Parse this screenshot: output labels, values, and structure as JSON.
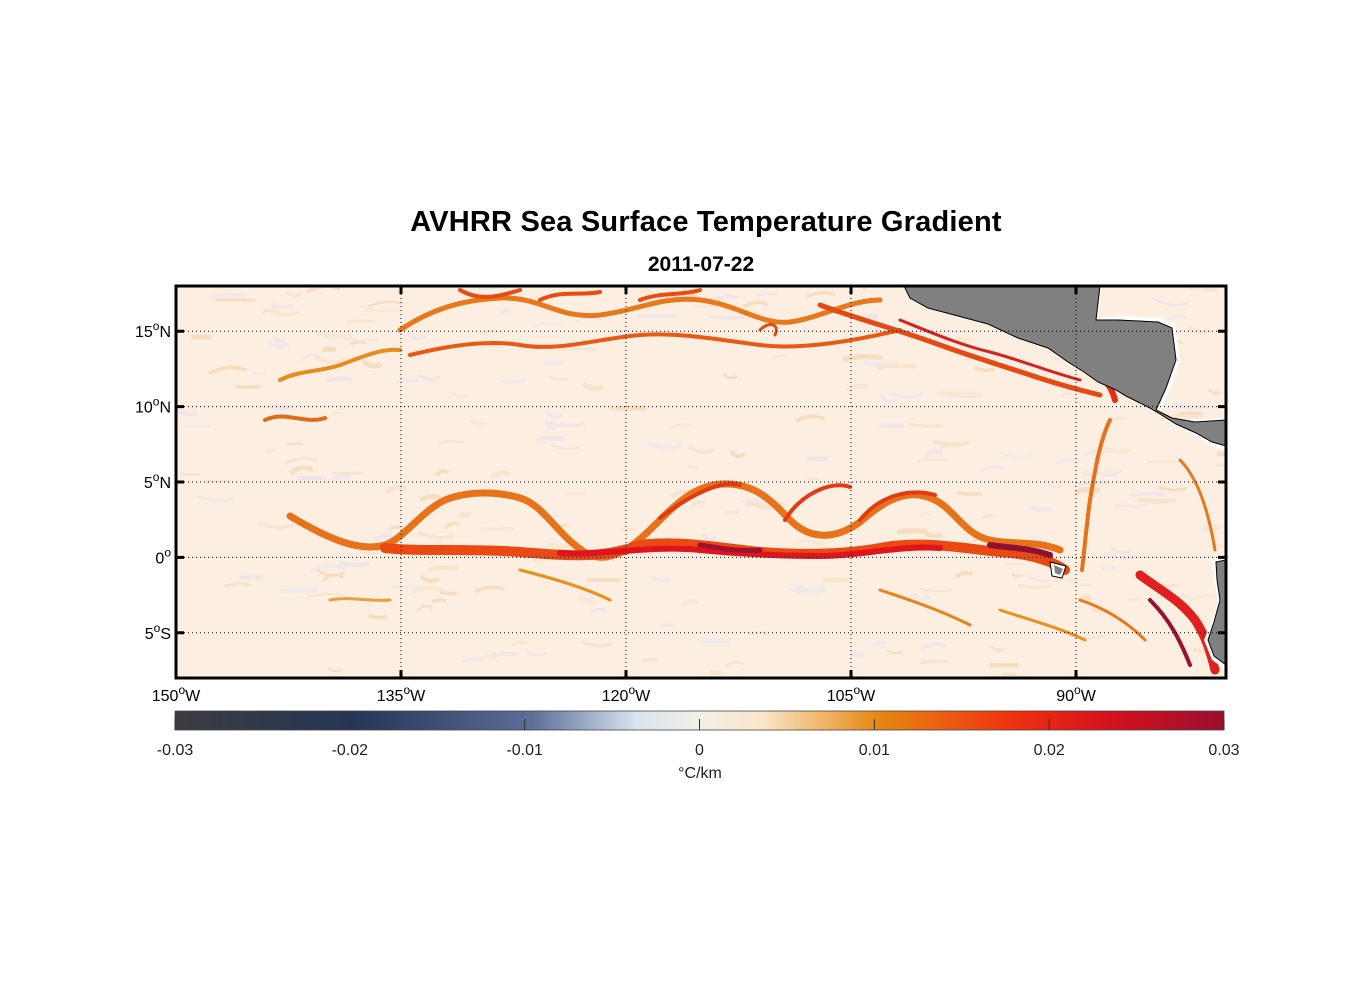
{
  "title": "AVHRR Sea Surface Temperature Gradient",
  "subtitle": "2011-07-22",
  "map": {
    "lon_range": [
      -150,
      -80
    ],
    "lat_range": [
      -8,
      18
    ],
    "grid": "dotted",
    "land_color": "#808080",
    "lat_ticks": [
      {
        "value": 15,
        "num": "15",
        "hemi": "N"
      },
      {
        "value": 10,
        "num": "10",
        "hemi": "N"
      },
      {
        "value": 5,
        "num": "5",
        "hemi": "N"
      },
      {
        "value": 0,
        "num": "0",
        "hemi": ""
      },
      {
        "value": -5,
        "num": "5",
        "hemi": "S"
      }
    ],
    "lon_ticks": [
      {
        "value": -150,
        "num": "150",
        "hemi": "W"
      },
      {
        "value": -135,
        "num": "135",
        "hemi": "W"
      },
      {
        "value": -120,
        "num": "120",
        "hemi": "W"
      },
      {
        "value": -105,
        "num": "105",
        "hemi": "W"
      },
      {
        "value": -90,
        "num": "90",
        "hemi": "W"
      }
    ]
  },
  "colorbar": {
    "range": [
      -0.03,
      0.03
    ],
    "ticks": [
      "-0.03",
      "-0.02",
      "-0.01",
      "0",
      "0.01",
      "0.02",
      "0.03"
    ],
    "label": "°C/km",
    "colors": [
      "#3a3c40",
      "#243555",
      "#5a6e98",
      "#d8e4ee",
      "#fbecd4",
      "#e68812",
      "#f03010",
      "#d0101e",
      "#9a1030"
    ]
  }
}
